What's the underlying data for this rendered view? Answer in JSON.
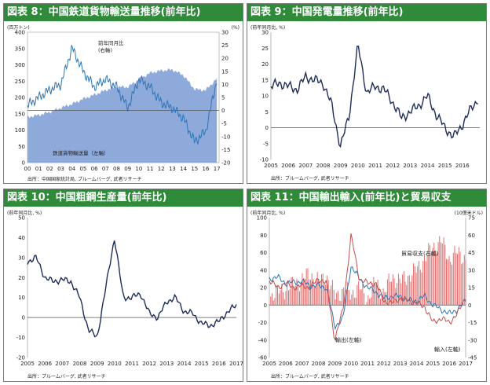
{
  "charts": [
    {
      "title": "図表 8：中国鉄道貨物輸送量推移(前年比)",
      "source": "出所：中国国家統計局, ブルームバーグ, 武者リサーチ",
      "left_unit": "(百万トン)",
      "right_unit": "(%)",
      "ann_line": "前年同月比",
      "ann_line2": "(右軸)",
      "ann_area": "鉄道貨物輸送量（左軸）",
      "left_ticks": [
        "0",
        "50",
        "100",
        "150",
        "200",
        "250",
        "300",
        "350",
        "400"
      ],
      "right_ticks": [
        "-20",
        "-15",
        "-10",
        "-5",
        "0",
        "5",
        "10",
        "15",
        "20",
        "25",
        "30"
      ],
      "x_ticks": [
        "00",
        "01",
        "02",
        "03",
        "04",
        "05",
        "06",
        "07",
        "08",
        "09",
        "10",
        "11",
        "12",
        "13",
        "14",
        "15",
        "16",
        "17"
      ]
    },
    {
      "title": "図表 9：中国発電量推移(前年比)",
      "source": "出所：ブルームバーグ, 武者リサーチ",
      "unit": "(前年同月比, %)",
      "y_ticks": [
        "-10",
        "-5",
        "0",
        "5",
        "10",
        "15",
        "20",
        "25",
        "30"
      ],
      "x_ticks": [
        "2005",
        "2006",
        "2007",
        "2008",
        "2009",
        "2010",
        "2011",
        "2012",
        "2013",
        "2014",
        "2015",
        "2016"
      ]
    },
    {
      "title": "図表 10：中国粗鋼生産量(前年比)",
      "source": "出所：ブルームバーグ, 武者リサーチ",
      "unit": "(前年同月比, %)",
      "y_ticks": [
        "-20",
        "-10",
        "0",
        "10",
        "20",
        "30",
        "40",
        "50"
      ],
      "x_ticks": [
        "2005",
        "2006",
        "2007",
        "2008",
        "2009",
        "2010",
        "2011",
        "2012",
        "2013",
        "2014",
        "2015",
        "2016",
        "2017"
      ]
    },
    {
      "title": "図表 11：中国輸出輸入(前年比)と貿易収支",
      "source": "出所：ブルームバーグ, 武者リサーチ",
      "left_unit": "(前年同月比, %)",
      "right_unit": "(10億米ドル)",
      "ann_trade": "貿易収支(右軸)",
      "ann_export": "輸出(左軸)",
      "ann_import": "輸入(左軸)",
      "left_ticks": [
        "-60",
        "-40",
        "-20",
        "0",
        "20",
        "40",
        "60",
        "80",
        "100"
      ],
      "right_ticks": [
        "-45",
        "-30",
        "-15",
        "0",
        "15",
        "30",
        "45",
        "60",
        "75"
      ],
      "x_ticks": [
        "2005",
        "2006",
        "2007",
        "2008",
        "2009",
        "2010",
        "2011",
        "2012",
        "2013",
        "2014",
        "2015",
        "2016",
        "2017"
      ]
    }
  ],
  "colors": {
    "title_bg": "#2f8a3a",
    "area_fill": "#8eaadb",
    "blue_line": "#2e75b6",
    "navy_line": "#1f2d5a",
    "red_bar": "#e46464",
    "zero_line": "#555555"
  },
  "chart_data": [
    {
      "type": "area",
      "title": "図表 8：中国鉄道貨物輸送量推移(前年比)",
      "x": [
        2000,
        2001,
        2002,
        2003,
        2004,
        2005,
        2006,
        2007,
        2008,
        2009,
        2010,
        2011,
        2012,
        2013,
        2014,
        2015,
        2016,
        2017
      ],
      "xlim": [
        2000,
        2017.2
      ],
      "series": [
        {
          "name": "鉄道貨物輸送量（左軸）",
          "axis": "left",
          "type": "area",
          "values": [
            140,
            146,
            155,
            168,
            180,
            195,
            208,
            222,
            232,
            232,
            255,
            275,
            282,
            285,
            268,
            225,
            222,
            258
          ]
        },
        {
          "name": "前年同月比",
          "axis": "right",
          "type": "line",
          "values": [
            2,
            5,
            8,
            10,
            24,
            15,
            9,
            12,
            9,
            1,
            12,
            9,
            3,
            1,
            -3,
            -12,
            -8,
            12
          ]
        }
      ],
      "ylim_left": [
        0,
        400
      ],
      "ylim_right": [
        -20,
        30
      ]
    },
    {
      "type": "line",
      "title": "図表 9：中国発電量推移(前年比)",
      "x": [
        2005,
        2005.5,
        2006,
        2006.5,
        2007,
        2007.5,
        2008,
        2008.5,
        2009,
        2009.5,
        2010,
        2010.5,
        2011,
        2011.5,
        2012,
        2012.5,
        2013,
        2013.5,
        2014,
        2014.5,
        2015,
        2015.5,
        2016,
        2016.5,
        2016.9
      ],
      "xlim": [
        2005,
        2017
      ],
      "series": [
        {
          "name": "",
          "values": [
            13,
            14,
            13,
            12,
            16,
            15,
            14,
            7,
            -6,
            4,
            26,
            11,
            13,
            12,
            8,
            3,
            5,
            7,
            10,
            4,
            0,
            -3,
            1,
            6,
            9
          ]
        }
      ],
      "ylim": [
        -10,
        30
      ]
    },
    {
      "type": "line",
      "title": "図表 10：中国粗鋼生産量(前年比)",
      "x": [
        2005,
        2005.5,
        2006,
        2006.5,
        2007,
        2007.5,
        2008,
        2008.5,
        2009,
        2009.5,
        2010,
        2010.5,
        2011,
        2011.5,
        2012,
        2012.5,
        2013,
        2013.5,
        2014,
        2014.5,
        2015,
        2015.5,
        2016,
        2016.5,
        2017
      ],
      "xlim": [
        2005,
        2017
      ],
      "series": [
        {
          "name": "",
          "values": [
            28,
            30,
            20,
            18,
            19,
            18,
            10,
            -6,
            -10,
            15,
            40,
            10,
            10,
            12,
            2,
            0,
            8,
            10,
            3,
            2,
            -3,
            -4,
            -2,
            3,
            6
          ]
        }
      ],
      "ylim": [
        -20,
        50
      ]
    },
    {
      "type": "bar",
      "title": "図表 11：中国輸出輸入(前年比)と貿易収支",
      "x": [
        2005,
        2005.5,
        2006,
        2006.5,
        2007,
        2007.5,
        2008,
        2008.5,
        2009,
        2009.5,
        2010,
        2010.5,
        2011,
        2011.5,
        2012,
        2012.5,
        2013,
        2013.5,
        2014,
        2014.5,
        2015,
        2015.5,
        2016,
        2016.5,
        2017
      ],
      "xlim": [
        2005,
        2017
      ],
      "series": [
        {
          "name": "貿易収支(右軸)",
          "axis": "right",
          "type": "bar",
          "values": [
            8,
            11,
            14,
            18,
            22,
            27,
            20,
            25,
            8,
            12,
            10,
            15,
            5,
            20,
            10,
            25,
            20,
            25,
            30,
            40,
            50,
            55,
            40,
            45,
            40
          ]
        },
        {
          "name": "輸出(左軸)",
          "axis": "left",
          "type": "line",
          "values": [
            30,
            32,
            25,
            26,
            27,
            22,
            22,
            20,
            -25,
            -15,
            45,
            30,
            20,
            15,
            8,
            10,
            10,
            5,
            5,
            10,
            0,
            -5,
            -10,
            -5,
            5
          ]
        },
        {
          "name": "輸入(左軸)",
          "axis": "left",
          "type": "line",
          "values": [
            28,
            20,
            25,
            20,
            22,
            20,
            30,
            25,
            -40,
            -5,
            80,
            30,
            25,
            25,
            5,
            2,
            8,
            5,
            2,
            -2,
            -20,
            -15,
            -20,
            -10,
            10
          ]
        }
      ],
      "ylim_left": [
        -60,
        100
      ],
      "ylim_right": [
        -45,
        75
      ]
    }
  ]
}
